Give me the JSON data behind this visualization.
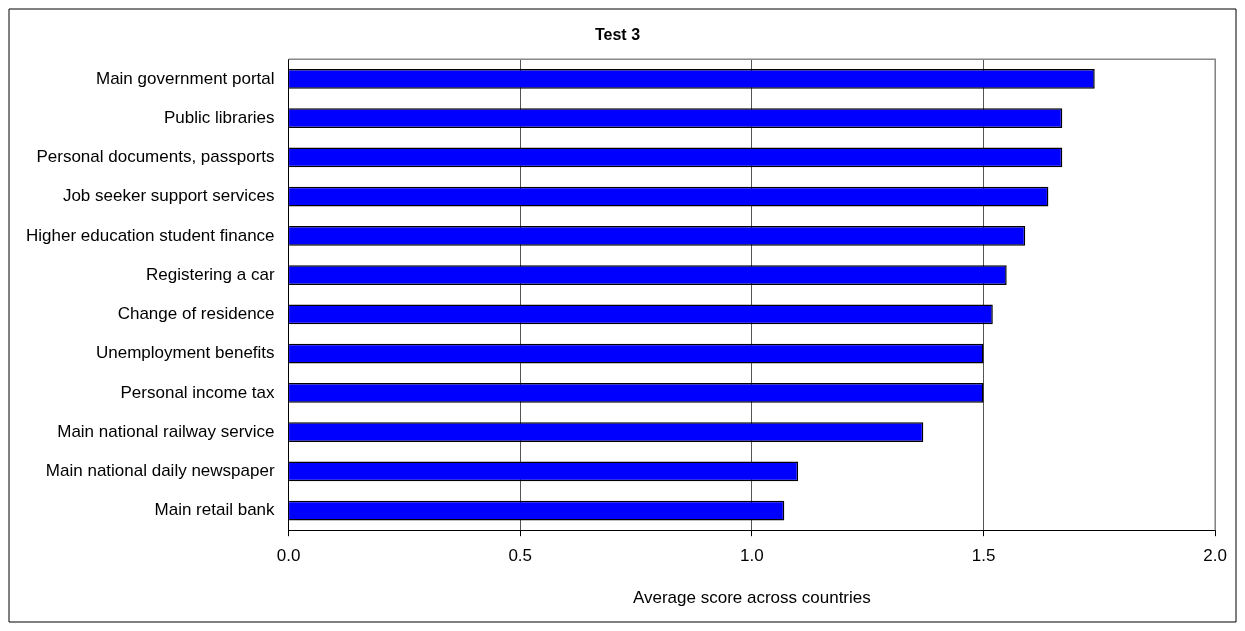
{
  "chart_data": {
    "type": "bar",
    "orientation": "horizontal",
    "title": "Test 3",
    "xlabel": "Average score across countries",
    "categories": [
      "Main government portal",
      "Public libraries",
      "Personal documents, passports",
      "Job seeker support services",
      "Higher education student finance",
      "Registering a car",
      "Change of residence",
      "Unemployment benefits",
      "Personal income tax",
      "Main national railway service",
      "Main national daily newspaper",
      "Main retail bank"
    ],
    "values": [
      1.74,
      1.67,
      1.67,
      1.64,
      1.59,
      1.55,
      1.52,
      1.5,
      1.5,
      1.37,
      1.1,
      1.07
    ],
    "color": "#0000ff",
    "xlim": [
      0,
      2
    ],
    "xticks": [
      {
        "value": 0,
        "label": "0.0"
      },
      {
        "value": 0.5,
        "label": "0.5"
      },
      {
        "value": 1,
        "label": "1.0"
      },
      {
        "value": 1.5,
        "label": "1.5"
      },
      {
        "value": 2,
        "label": "2.0"
      }
    ],
    "grid": "x",
    "legend": false
  }
}
